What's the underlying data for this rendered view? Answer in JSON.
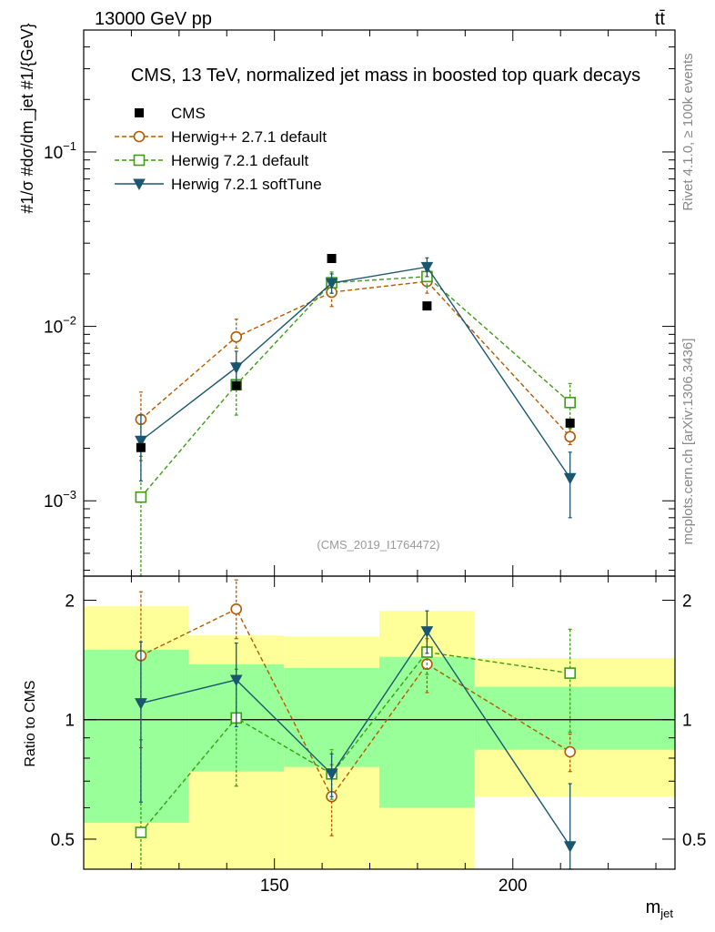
{
  "header": {
    "left": "13000 GeV pp",
    "right": "tt̄"
  },
  "sidebar": {
    "top_text": "Rivet 4.1.0, ≥ 100k events",
    "bottom_text": "mcplots.cern.ch [arXiv:1306.3436]"
  },
  "watermark": "(CMS_2019_I1764472)",
  "chart_data": {
    "type": "line",
    "title": "CMS, 13 TeV, normalized jet mass in boosted top quark decays",
    "xlabel": "m_jet",
    "ylabel": "#1/σ #dσ/dm_jet #1/{GeV}",
    "ratio_ylabel": "Ratio to CMS",
    "xlim": [
      110,
      234
    ],
    "ylim": [
      0.00037,
      0.5
    ],
    "ratio_ylim": [
      0.42,
      2.3
    ],
    "y_scale": "log",
    "legend_position": "top-left",
    "x_ticks": [
      {
        "v": 150,
        "label": "150"
      },
      {
        "v": 200,
        "label": "200"
      }
    ],
    "y_ticks": [
      {
        "v": 0.1,
        "base": "10",
        "exp": "−1"
      },
      {
        "v": 0.01,
        "base": "10",
        "exp": "−2"
      },
      {
        "v": 0.001,
        "base": "10",
        "exp": "−3"
      }
    ],
    "ratio_ticks": [
      {
        "v": 0.5,
        "label": "0.5"
      },
      {
        "v": 1,
        "label": "1"
      },
      {
        "v": 2,
        "label": "2"
      }
    ],
    "bins": [
      {
        "lo": 110,
        "hi": 132,
        "x": 122
      },
      {
        "lo": 132,
        "hi": 152,
        "x": 142
      },
      {
        "lo": 152,
        "hi": 172,
        "x": 162
      },
      {
        "lo": 172,
        "hi": 192,
        "x": 182
      },
      {
        "lo": 192,
        "hi": 234,
        "x": 212
      }
    ],
    "cms": {
      "name": "CMS",
      "values": [
        0.00202,
        0.00458,
        0.0245,
        0.0131,
        0.00279
      ],
      "band_inner": [
        [
          0.55,
          1.5
        ],
        [
          0.74,
          1.38
        ],
        [
          0.76,
          1.35
        ],
        [
          0.6,
          1.44
        ],
        [
          0.84,
          1.21
        ]
      ],
      "band_outer": [
        [
          0.36,
          1.93
        ],
        [
          0.36,
          1.63
        ],
        [
          0.39,
          1.62
        ],
        [
          0.36,
          1.88
        ],
        [
          0.64,
          1.43
        ]
      ]
    },
    "series": [
      {
        "name": "Herwig++ 2.7.1 default",
        "color": "#b35a00",
        "marker": "circle",
        "dashed": true,
        "values": [
          0.00293,
          0.0087,
          0.0157,
          0.0181,
          0.00233
        ],
        "errors": [
          [
            0.0017,
            0.0042
          ],
          [
            0.0075,
            0.011
          ],
          [
            0.013,
            0.0185
          ],
          [
            0.0155,
            0.021
          ],
          [
            0.0021,
            0.0026
          ]
        ],
        "ratio": [
          1.45,
          1.9,
          0.64,
          1.38,
          0.83
        ],
        "ratio_errors": [
          [
            0.85,
            2.1
          ],
          [
            1.6,
            2.25
          ],
          [
            0.51,
            0.77
          ],
          [
            1.17,
            1.6
          ],
          [
            0.74,
            0.92
          ]
        ]
      },
      {
        "name": "Herwig 7.2.1 default",
        "color": "#3c9c14",
        "marker": "square",
        "dashed": true,
        "values": [
          0.00105,
          0.00463,
          0.0178,
          0.0193,
          0.00366
        ],
        "errors": [
          [
            0.0003,
            0.0018
          ],
          [
            0.0031,
            0.0062
          ],
          [
            0.0155,
            0.0205
          ],
          [
            0.017,
            0.0217
          ],
          [
            0.0026,
            0.0047
          ]
        ],
        "ratio": [
          0.52,
          1.01,
          0.73,
          1.48,
          1.31
        ],
        "ratio_errors": [
          [
            0.15,
            0.89
          ],
          [
            0.68,
            1.34
          ],
          [
            0.63,
            0.84
          ],
          [
            1.3,
            1.66
          ],
          [
            0.93,
            1.69
          ]
        ]
      },
      {
        "name": "Herwig 7.2.1 softTune",
        "color": "#1b5670",
        "marker": "triangle-down",
        "dashed": false,
        "values": [
          0.00221,
          0.00581,
          0.0177,
          0.0219,
          0.00135
        ],
        "errors": [
          [
            0.0013,
            0.0031
          ],
          [
            0.0044,
            0.0072
          ],
          [
            0.0155,
            0.02
          ],
          [
            0.0193,
            0.0247
          ],
          [
            0.0008,
            0.0019
          ]
        ],
        "ratio": [
          1.1,
          1.26,
          0.73,
          1.67,
          0.48
        ],
        "ratio_errors": [
          [
            0.62,
            1.57
          ],
          [
            0.96,
            1.56
          ],
          [
            0.64,
            0.82
          ],
          [
            1.47,
            1.88
          ],
          [
            0.28,
            0.69
          ]
        ]
      }
    ]
  }
}
